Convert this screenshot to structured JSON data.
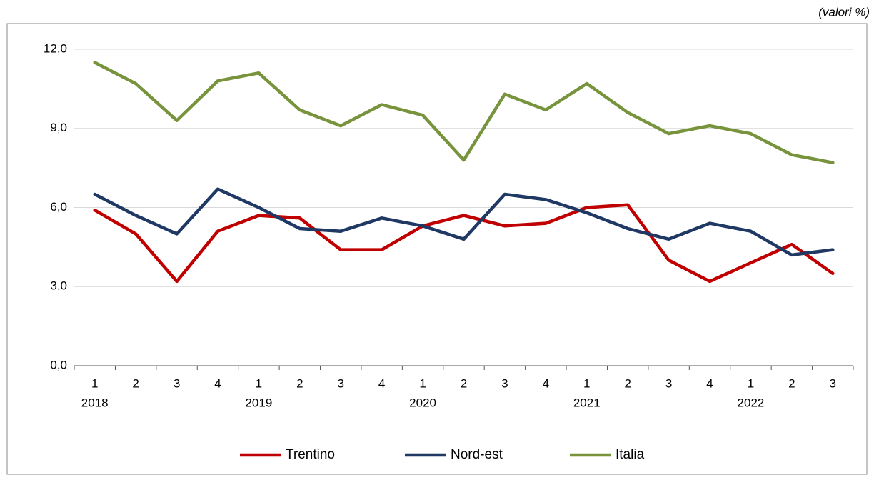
{
  "chart_data": {
    "type": "line",
    "unit_note": "(valori %)",
    "categories": [
      "1",
      "2",
      "3",
      "4",
      "1",
      "2",
      "3",
      "4",
      "1",
      "2",
      "3",
      "4",
      "1",
      "2",
      "3",
      "4",
      "1",
      "2",
      "3"
    ],
    "year_labels": [
      "2018",
      null,
      null,
      null,
      "2019",
      null,
      null,
      null,
      "2020",
      null,
      null,
      null,
      "2021",
      null,
      null,
      null,
      "2022",
      null,
      null
    ],
    "series": [
      {
        "name": "Trentino",
        "color": "#c00000",
        "values": [
          5.9,
          5.0,
          3.2,
          5.1,
          5.7,
          5.6,
          4.4,
          4.4,
          5.3,
          5.7,
          5.3,
          5.4,
          6.0,
          6.1,
          4.0,
          3.2,
          3.9,
          4.6,
          3.5
        ]
      },
      {
        "name": "Nord-est",
        "color": "#1f3864",
        "values": [
          6.5,
          5.7,
          5.0,
          6.7,
          6.0,
          5.2,
          5.1,
          5.6,
          5.3,
          4.8,
          6.5,
          6.3,
          5.8,
          5.2,
          4.8,
          5.4,
          5.1,
          4.2,
          4.4
        ]
      },
      {
        "name": "Italia",
        "color": "#77933c",
        "values": [
          11.5,
          10.7,
          9.3,
          10.8,
          11.1,
          9.7,
          9.1,
          9.9,
          9.5,
          7.8,
          10.3,
          9.7,
          10.7,
          9.6,
          8.8,
          9.1,
          8.8,
          8.0,
          7.7
        ]
      }
    ],
    "ylim": [
      0,
      12
    ],
    "yticks": [
      {
        "value": 0,
        "label": "0,0"
      },
      {
        "value": 3,
        "label": "3,0"
      },
      {
        "value": 6,
        "label": "6,0"
      },
      {
        "value": 9,
        "label": "9,0"
      },
      {
        "value": 12,
        "label": "12,0"
      }
    ],
    "grid": true,
    "legend": "bottom"
  }
}
